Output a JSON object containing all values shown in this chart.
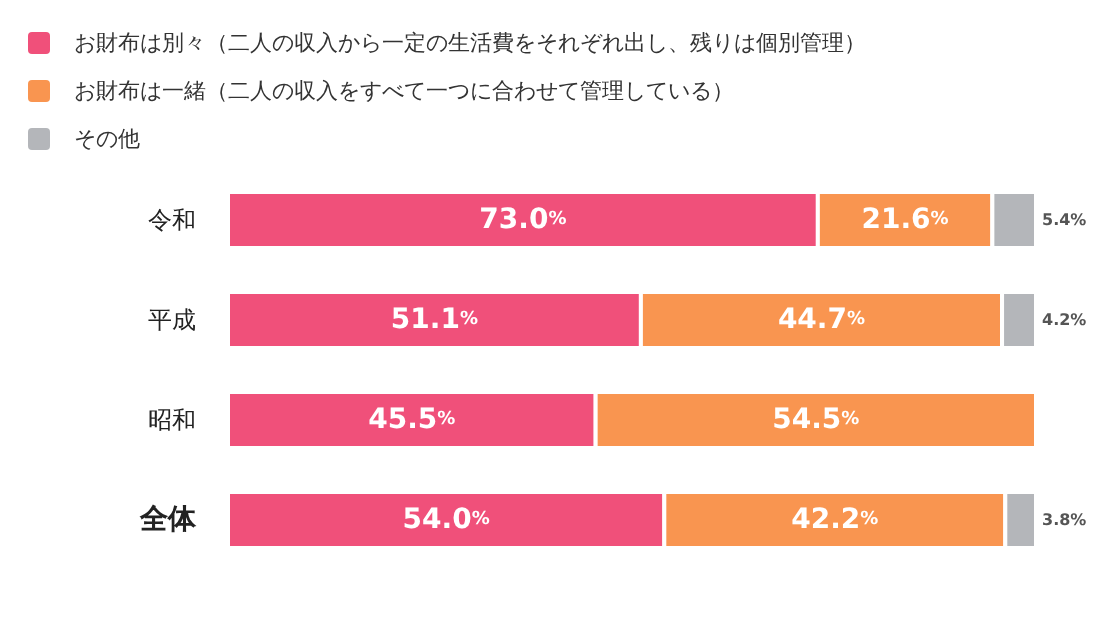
{
  "chart_data": {
    "type": "bar",
    "orientation": "horizontal",
    "stacked": true,
    "legend": "top left",
    "categories": [
      "令和",
      "平成",
      "昭和",
      "全体"
    ],
    "series": [
      {
        "name": "お財布は別々（二人の収入から一定の生活費をそれぞれ出し、残りは個別管理）",
        "color": "#f0507a",
        "values": [
          73.0,
          51.1,
          45.5,
          54.0
        ],
        "value_labels": [
          "73.0%",
          "51.1%",
          "45.5%",
          "54.0%"
        ]
      },
      {
        "name": "お財布は一緒（二人の収入をすべて一つに合わせて管理している）",
        "color": "#f99550",
        "values": [
          21.6,
          44.7,
          54.5,
          42.2
        ],
        "value_labels": [
          "21.6%",
          "44.7%",
          "54.5%",
          "42.2%"
        ]
      },
      {
        "name": "その他",
        "color": "#b4b6ba",
        "values": [
          5.4,
          4.2,
          null,
          3.8
        ],
        "value_labels": [
          "5.4%",
          "4.2%",
          null,
          "3.8%"
        ]
      }
    ]
  }
}
